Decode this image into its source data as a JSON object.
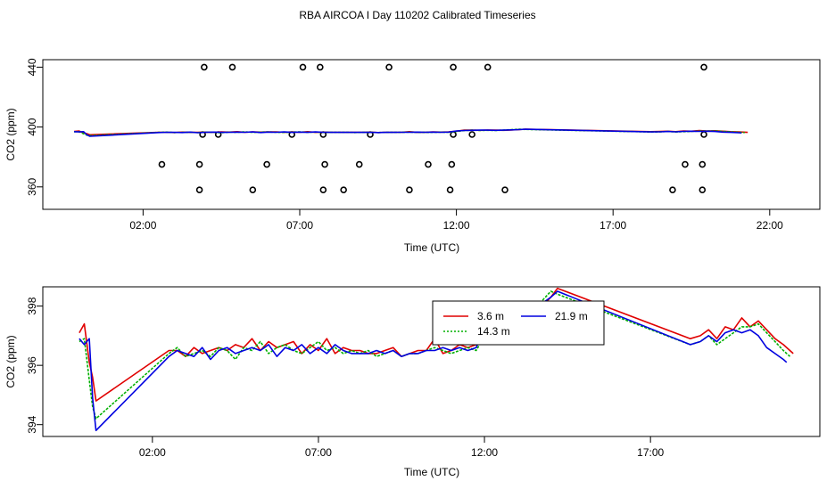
{
  "figure": {
    "title": "RBA AIRCOA I  Day 110202  Calibrated Timeseries"
  },
  "colors": {
    "s1": "#e00000",
    "s2": "#00b000",
    "s3": "#0000e0",
    "flags": "#000000",
    "axis": "#000000"
  },
  "chart_data": [
    {
      "type": "line",
      "xlabel": "Time (UTC)",
      "ylabel": "CO2 (ppm)",
      "xlim": [
        -1.2,
        23.6
      ],
      "ylim": [
        345,
        445
      ],
      "xticks": [
        2,
        7,
        12,
        17,
        22
      ],
      "xtick_labels": [
        "02:00",
        "07:00",
        "12:00",
        "17:00",
        "22:00"
      ],
      "yticks": [
        360,
        400,
        440
      ],
      "ytick_labels": [
        "360",
        "400",
        "440"
      ],
      "series": [
        {
          "values_from": "lower.series.0",
          "stroke": "#e00000"
        },
        {
          "values_from": "lower.series.1",
          "stroke": "#00b000"
        },
        {
          "values_from": "lower.series.2",
          "stroke": "#0000e0"
        }
      ],
      "flag_points": {
        "y440": [
          3.95,
          4.85,
          7.1,
          7.65,
          9.85,
          11.9,
          13.0,
          19.9
        ],
        "y395": [
          3.9,
          4.4,
          6.75,
          7.75,
          9.25,
          11.9,
          12.5,
          19.9
        ],
        "y375": [
          2.6,
          3.8,
          5.95,
          7.8,
          8.9,
          11.1,
          11.85,
          19.3,
          19.85
        ],
        "y358": [
          3.8,
          5.5,
          7.75,
          8.4,
          10.5,
          11.8,
          13.55,
          18.9,
          19.85
        ]
      }
    },
    {
      "type": "line",
      "xlabel": "Time (UTC)",
      "ylabel": "CO2 (ppm)",
      "xlim": [
        -1.3,
        22.1
      ],
      "ylim": [
        393.6,
        398.65
      ],
      "xticks": [
        2,
        7,
        12,
        17
      ],
      "xtick_labels": [
        "02:00",
        "07:00",
        "12:00",
        "17:00"
      ],
      "yticks": [
        394,
        396,
        398
      ],
      "ytick_labels": [
        "394",
        "396",
        "398"
      ],
      "legend": {
        "position": "top-center-right",
        "labels": [
          "3.6 m",
          "14.3 m",
          "21.9 m"
        ]
      },
      "series": [
        {
          "name": "3.6 m",
          "stroke": "#e00000",
          "x": [
            -0.2,
            -0.05,
            0.1,
            0.2,
            0.3,
            2.5,
            2.75,
            3.0,
            3.25,
            3.5,
            3.75,
            4.0,
            4.25,
            4.5,
            4.75,
            5.0,
            5.25,
            5.5,
            5.75,
            6.0,
            6.25,
            6.5,
            6.75,
            7.0,
            7.25,
            7.5,
            7.75,
            8.0,
            8.25,
            8.5,
            8.75,
            9.0,
            9.25,
            9.5,
            9.75,
            10.0,
            10.25,
            10.5,
            10.75,
            11.0,
            11.25,
            11.5,
            11.75,
            12.0,
            12.25,
            12.5,
            12.75,
            13.0,
            13.25,
            13.5,
            13.75,
            14.0,
            14.2,
            18.2,
            18.5,
            18.75,
            19.0,
            19.25,
            19.5,
            19.75,
            20.0,
            20.25,
            20.5,
            20.75,
            21.0,
            21.3
          ],
          "values": [
            397.1,
            397.4,
            396.1,
            395.6,
            394.8,
            396.5,
            396.5,
            396.3,
            396.6,
            396.4,
            396.5,
            396.6,
            396.5,
            396.7,
            396.6,
            396.9,
            396.5,
            396.8,
            396.6,
            396.7,
            396.8,
            396.4,
            396.7,
            396.5,
            396.9,
            396.4,
            396.6,
            396.5,
            396.5,
            396.4,
            396.4,
            396.5,
            396.6,
            396.3,
            396.4,
            396.5,
            396.5,
            396.9,
            396.4,
            396.5,
            396.7,
            396.6,
            396.7,
            397.2,
            397.9,
            397.9,
            397.8,
            398.0,
            397.9,
            397.8,
            398.0,
            398.3,
            398.6,
            396.9,
            397.0,
            397.2,
            396.9,
            397.3,
            397.2,
            397.6,
            397.3,
            397.5,
            397.2,
            396.9,
            396.7,
            396.4
          ]
        },
        {
          "name": "14.3 m",
          "stroke": "#00b000",
          "x": [
            -0.2,
            -0.05,
            0.1,
            0.2,
            0.3,
            2.5,
            2.75,
            3.0,
            3.25,
            3.5,
            3.75,
            4.0,
            4.25,
            4.5,
            4.75,
            5.0,
            5.25,
            5.5,
            5.75,
            6.0,
            6.25,
            6.5,
            6.75,
            7.0,
            7.25,
            7.5,
            7.75,
            8.0,
            8.25,
            8.5,
            8.75,
            9.0,
            9.25,
            9.5,
            9.75,
            10.0,
            10.25,
            10.5,
            10.75,
            11.0,
            11.25,
            11.5,
            11.75,
            12.0,
            12.25,
            12.5,
            12.75,
            13.0,
            13.25,
            13.5,
            13.75,
            14.0,
            14.2,
            18.2,
            18.5,
            18.75,
            19.0,
            19.25,
            19.5,
            19.75,
            20.0,
            20.25,
            20.5,
            20.75,
            21.0,
            21.2
          ],
          "values": [
            396.8,
            396.9,
            395.5,
            394.6,
            394.2,
            396.4,
            396.6,
            396.3,
            396.4,
            396.5,
            396.3,
            396.6,
            396.5,
            396.2,
            396.6,
            396.5,
            396.8,
            396.4,
            396.6,
            396.7,
            396.5,
            396.4,
            396.6,
            396.8,
            396.5,
            396.6,
            396.4,
            396.5,
            396.4,
            396.5,
            396.3,
            396.4,
            396.5,
            396.3,
            396.4,
            396.4,
            396.5,
            396.6,
            396.5,
            396.4,
            396.5,
            396.6,
            396.5,
            397.0,
            397.6,
            397.9,
            397.7,
            397.8,
            397.7,
            397.9,
            398.2,
            398.5,
            398.4,
            396.7,
            396.8,
            397.0,
            396.7,
            396.9,
            397.1,
            397.3,
            397.3,
            397.4,
            397.1,
            396.8,
            396.5,
            396.3
          ]
        },
        {
          "name": "21.9 m",
          "stroke": "#0000e0",
          "x": [
            -0.2,
            -0.05,
            0.1,
            0.2,
            0.3,
            2.5,
            2.75,
            3.0,
            3.25,
            3.5,
            3.75,
            4.0,
            4.25,
            4.5,
            4.75,
            5.0,
            5.25,
            5.5,
            5.75,
            6.0,
            6.25,
            6.5,
            6.75,
            7.0,
            7.25,
            7.5,
            7.75,
            8.0,
            8.25,
            8.5,
            8.75,
            9.0,
            9.25,
            9.5,
            9.75,
            10.0,
            10.25,
            10.5,
            10.75,
            11.0,
            11.25,
            11.5,
            11.75,
            12.0,
            12.25,
            12.5,
            12.75,
            13.0,
            13.25,
            13.5,
            13.75,
            14.0,
            14.2,
            18.2,
            18.5,
            18.75,
            19.0,
            19.25,
            19.5,
            19.75,
            20.0,
            20.25,
            20.5,
            20.75,
            21.0,
            21.1
          ],
          "values": [
            396.9,
            396.7,
            396.9,
            394.9,
            393.8,
            396.3,
            396.5,
            396.4,
            396.3,
            396.6,
            396.2,
            396.5,
            396.6,
            396.4,
            396.5,
            396.6,
            396.5,
            396.7,
            396.3,
            396.6,
            396.5,
            396.7,
            396.4,
            396.6,
            396.4,
            396.7,
            396.5,
            396.4,
            396.4,
            396.4,
            396.5,
            396.4,
            396.5,
            396.3,
            396.4,
            396.4,
            396.5,
            396.5,
            396.6,
            396.5,
            396.6,
            396.5,
            396.6,
            397.3,
            397.7,
            397.8,
            397.9,
            397.9,
            397.8,
            397.9,
            398.1,
            398.3,
            398.5,
            396.7,
            396.8,
            397.0,
            396.8,
            397.1,
            397.2,
            397.1,
            397.2,
            397.0,
            396.6,
            396.4,
            396.2,
            396.1
          ]
        }
      ]
    }
  ]
}
